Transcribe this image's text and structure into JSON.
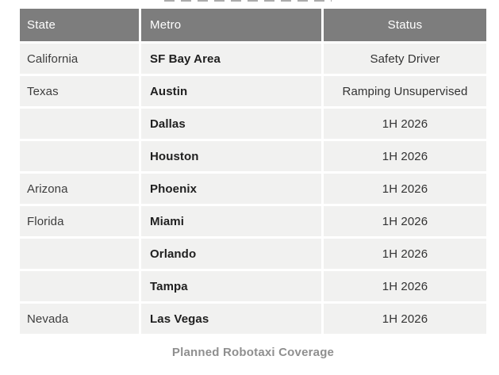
{
  "chart_data": {
    "type": "table",
    "title": "Planned Robotaxi Coverage",
    "columns": [
      "State",
      "Metro",
      "Status"
    ],
    "rows": [
      [
        "California",
        "SF Bay Area",
        "Safety Driver"
      ],
      [
        "Texas",
        "Austin",
        "Ramping Unsupervised"
      ],
      [
        "",
        "Dallas",
        "1H 2026"
      ],
      [
        "",
        "Houston",
        "1H 2026"
      ],
      [
        "Arizona",
        "Phoenix",
        "1H 2026"
      ],
      [
        "Florida",
        "Miami",
        "1H 2026"
      ],
      [
        "",
        "Orlando",
        "1H 2026"
      ],
      [
        "",
        "Tampa",
        "1H 2026"
      ],
      [
        "Nevada",
        "Las Vegas",
        "1H 2026"
      ]
    ]
  },
  "caption": "Planned Robotaxi Coverage",
  "colors": {
    "header_bg": "#7d7d7d",
    "header_text": "#ffffff",
    "row_bg": "#f1f1f0",
    "gridline": "#ffffff",
    "state_text": "#3d3d3d",
    "metro_text": "#1f1f1f",
    "status_text": "#333333",
    "caption_text": "#8f8f8f"
  }
}
